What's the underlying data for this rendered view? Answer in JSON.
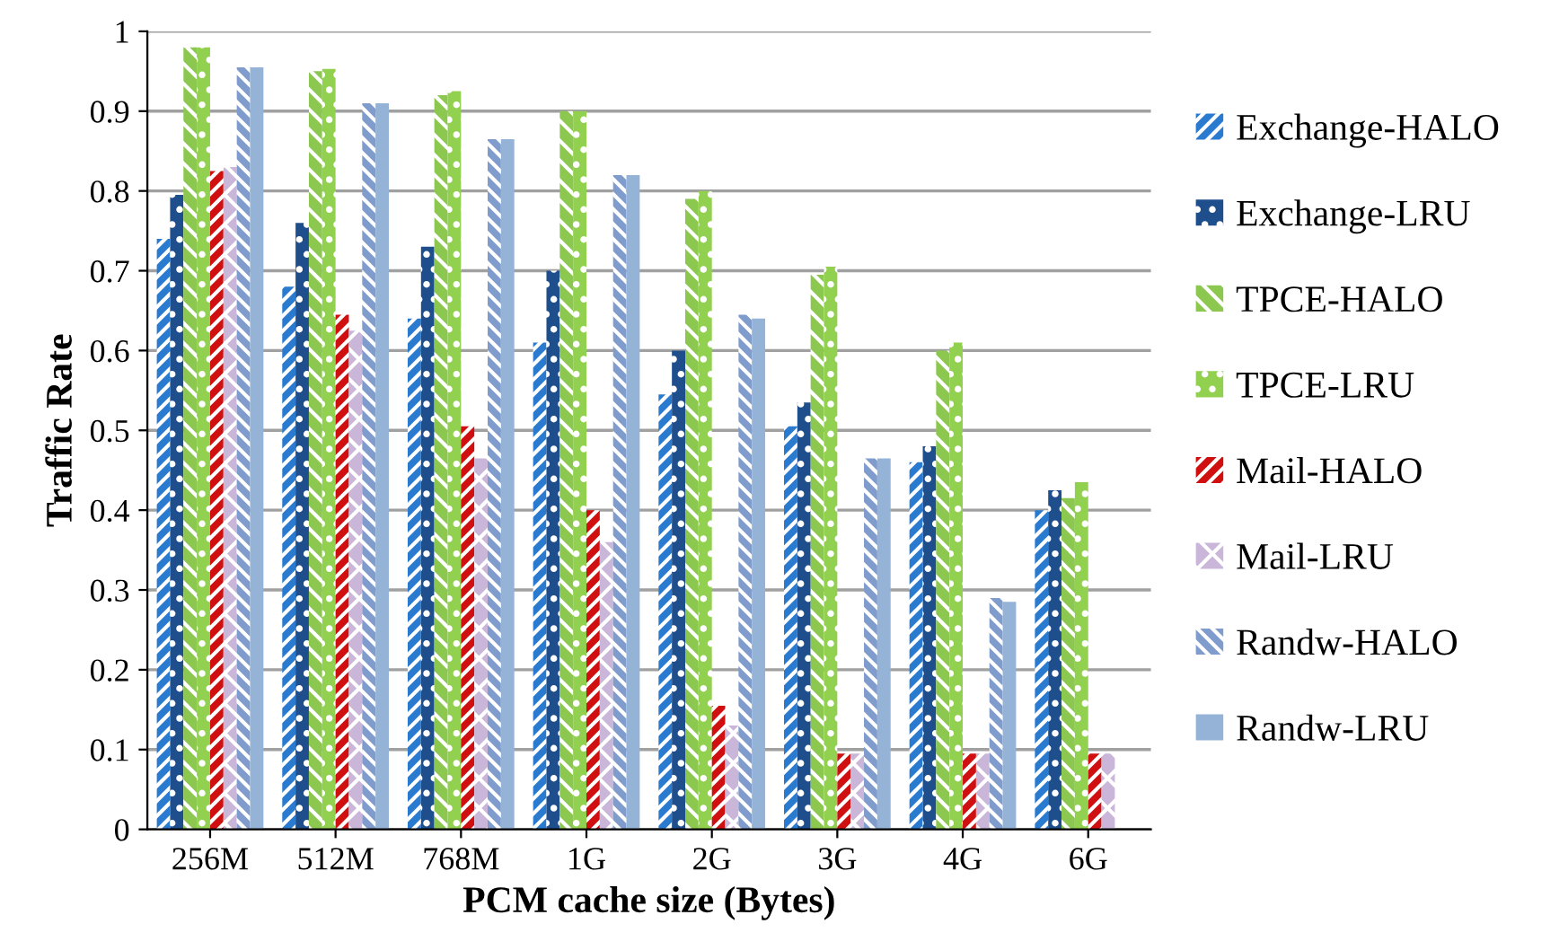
{
  "chart_data": {
    "type": "bar",
    "xlabel": "PCM cache size (Bytes)",
    "ylabel": "Traffic Rate",
    "categories": [
      "256M",
      "512M",
      "768M",
      "1G",
      "2G",
      "3G",
      "4G",
      "6G"
    ],
    "series": [
      {
        "name": "Exchange-HALO",
        "color": "#2a7bd0",
        "values": [
          0.74,
          0.68,
          0.64,
          0.61,
          0.545,
          0.505,
          0.46,
          0.4
        ]
      },
      {
        "name": "Exchange-LRU",
        "color": "#1f4e8c",
        "values": [
          0.795,
          0.76,
          0.73,
          0.7,
          0.6,
          0.535,
          0.48,
          0.425
        ]
      },
      {
        "name": "TPCE-HALO",
        "color": "#8cc850",
        "values": [
          0.98,
          0.95,
          0.92,
          0.9,
          0.79,
          0.695,
          0.6,
          0.415
        ]
      },
      {
        "name": "TPCE-LRU",
        "color": "#92d050",
        "values": [
          0.98,
          0.953,
          0.925,
          0.9,
          0.8,
          0.705,
          0.61,
          0.435
        ]
      },
      {
        "name": "Mail-HALO",
        "color": "#d01010",
        "values": [
          0.825,
          0.645,
          0.505,
          0.4,
          0.155,
          0.095,
          0.095,
          0.095
        ]
      },
      {
        "name": "Mail-LRU",
        "color": "#c9b6d8",
        "values": [
          0.83,
          0.625,
          0.465,
          0.36,
          0.13,
          0.095,
          0.095,
          0.095
        ]
      },
      {
        "name": "Randw-HALO",
        "color": "#7f9ccc",
        "values": [
          0.955,
          0.91,
          0.865,
          0.82,
          0.645,
          0.465,
          0.29,
          null
        ]
      },
      {
        "name": "Randw-LRU",
        "color": "#95b3d7",
        "values": [
          0.955,
          0.91,
          0.865,
          0.82,
          0.64,
          0.465,
          0.285,
          null
        ]
      }
    ],
    "ylim": [
      0,
      1
    ],
    "yticks": [
      0,
      0.1,
      0.2,
      0.3,
      0.4,
      0.5,
      0.6,
      0.7,
      0.8,
      0.9,
      1
    ],
    "grid": "y",
    "legend": "right"
  }
}
